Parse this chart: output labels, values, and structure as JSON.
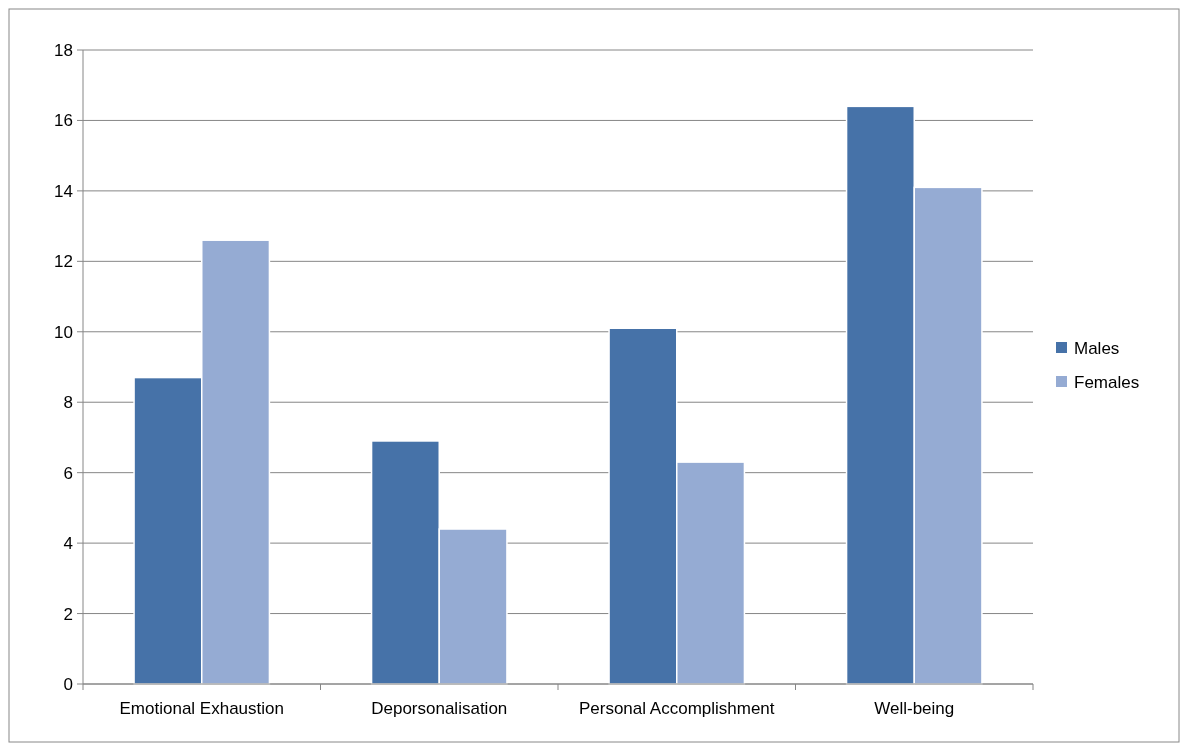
{
  "chart_data": {
    "type": "bar",
    "categories": [
      "Emotional Exhaustion",
      "Deporsonalisation",
      "Personal Accomplishment",
      "Well-being"
    ],
    "series": [
      {
        "name": "Males",
        "color": "#4672a8",
        "values": [
          8.7,
          6.9,
          10.1,
          16.4
        ]
      },
      {
        "name": "Females",
        "color": "#95abd3",
        "values": [
          12.6,
          4.4,
          6.3,
          14.1
        ]
      }
    ],
    "ylim": [
      0,
      18
    ],
    "yticks": [
      0,
      2,
      4,
      6,
      8,
      10,
      12,
      14,
      16,
      18
    ],
    "grid": "y",
    "legend": "right"
  }
}
